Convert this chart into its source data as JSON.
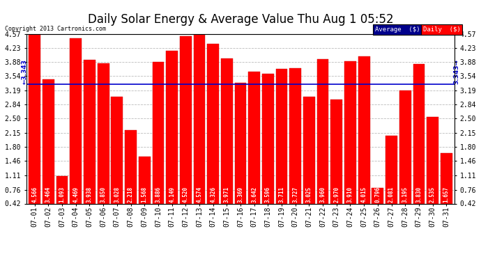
{
  "title": "Daily Solar Energy & Average Value Thu Aug 1 05:52",
  "copyright": "Copyright 2013 Cartronics.com",
  "categories": [
    "07-01",
    "07-02",
    "07-03",
    "07-04",
    "07-05",
    "07-06",
    "07-07",
    "07-08",
    "07-09",
    "07-10",
    "07-11",
    "07-12",
    "07-13",
    "07-14",
    "07-15",
    "07-16",
    "07-17",
    "07-18",
    "07-19",
    "07-20",
    "07-21",
    "07-22",
    "07-23",
    "07-24",
    "07-25",
    "07-26",
    "07-27",
    "07-28",
    "07-29",
    "07-30",
    "07-31"
  ],
  "values": [
    4.566,
    3.464,
    1.093,
    4.469,
    3.938,
    3.85,
    3.028,
    2.218,
    1.568,
    3.886,
    4.149,
    4.52,
    4.574,
    4.326,
    3.971,
    3.369,
    3.642,
    3.596,
    3.711,
    3.727,
    3.025,
    3.96,
    2.97,
    3.91,
    4.015,
    0.796,
    2.081,
    3.195,
    3.83,
    2.535,
    1.657
  ],
  "average": 3.343,
  "bar_color": "#ff0000",
  "average_line_color": "#0000cc",
  "ylim_min": 0.42,
  "ylim_max": 4.57,
  "yticks": [
    0.42,
    0.76,
    1.11,
    1.46,
    1.8,
    2.15,
    2.5,
    2.84,
    3.19,
    3.54,
    3.88,
    4.23,
    4.57
  ],
  "background_color": "#ffffff",
  "plot_bg_color": "#ffffff",
  "grid_color": "#bbbbbb",
  "title_fontsize": 12,
  "bar_width": 0.85,
  "legend_avg_bg": "#00008b",
  "legend_daily_bg": "#ff0000",
  "avg_label": "Average  ($)",
  "daily_label": "Daily  ($)",
  "label_fontsize": 5.5,
  "tick_fontsize": 7.0
}
